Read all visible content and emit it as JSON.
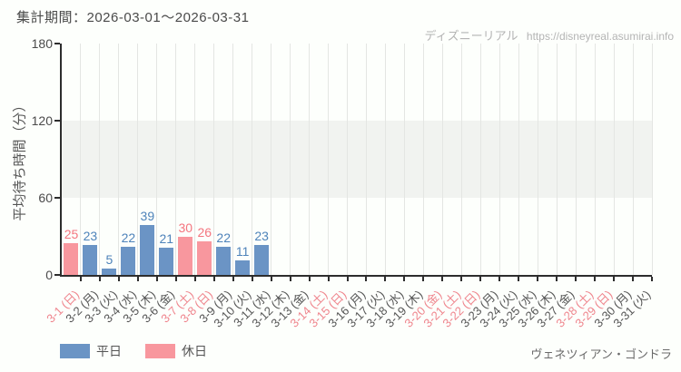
{
  "header": {
    "period_label": "集計期間：2026-03-01～2026-03-31",
    "watermark_site": "ディズニーリアル",
    "watermark_url": "https://disneyreal.asumirai.info"
  },
  "footer": {
    "attraction_name": "ヴェネツィアン・ゴンドラ"
  },
  "chart_data": {
    "type": "bar",
    "title": "集計期間：2026-03-01～2026-03-31",
    "xlabel": "",
    "ylabel": "平均待ち時間（分）",
    "ylim": [
      0,
      180
    ],
    "yticks": [
      0,
      60,
      120,
      180
    ],
    "shaded_band_y": [
      60,
      120
    ],
    "grid": "vertical",
    "legend_position": "bottom-left",
    "categories": [
      "3-1 (日)",
      "3-2 (月)",
      "3-3 (火)",
      "3-4 (水)",
      "3-5 (木)",
      "3-6 (金)",
      "3-7 (土)",
      "3-8 (日)",
      "3-9 (月)",
      "3-10 (火)",
      "3-11 (水)",
      "3-12 (木)",
      "3-13 (金)",
      "3-14 (土)",
      "3-15 (日)",
      "3-16 (月)",
      "3-17 (火)",
      "3-18 (水)",
      "3-19 (木)",
      "3-20 (金)",
      "3-21 (土)",
      "3-22 (日)",
      "3-23 (月)",
      "3-24 (火)",
      "3-25 (水)",
      "3-26 (木)",
      "3-27 (金)",
      "3-28 (土)",
      "3-29 (日)",
      "3-30 (月)",
      "3-31 (火)"
    ],
    "values": [
      25,
      23,
      5,
      22,
      39,
      21,
      30,
      26,
      22,
      11,
      23,
      null,
      null,
      null,
      null,
      null,
      null,
      null,
      null,
      null,
      null,
      null,
      null,
      null,
      null,
      null,
      null,
      null,
      null,
      null,
      null
    ],
    "day_types": [
      "holiday",
      "weekday",
      "weekday",
      "weekday",
      "weekday",
      "weekday",
      "holiday",
      "holiday",
      "weekday",
      "weekday",
      "weekday",
      "weekday",
      "weekday",
      "holiday",
      "holiday",
      "weekday",
      "weekday",
      "weekday",
      "weekday",
      "holiday",
      "holiday",
      "holiday",
      "weekday",
      "weekday",
      "weekday",
      "weekday",
      "weekday",
      "holiday",
      "holiday",
      "weekday",
      "weekday"
    ],
    "colors": {
      "weekday": "#6b94c5",
      "holiday": "#f8979e",
      "weekday_text": "#4e83ba",
      "holiday_text": "#f4757f",
      "weekday_tick": "#555555",
      "holiday_tick": "#ef858d",
      "band": "#f1f3f0",
      "gridline": "#e4e6e3"
    },
    "legend": [
      {
        "key": "weekday",
        "label": "平日"
      },
      {
        "key": "holiday",
        "label": "休日"
      }
    ]
  }
}
